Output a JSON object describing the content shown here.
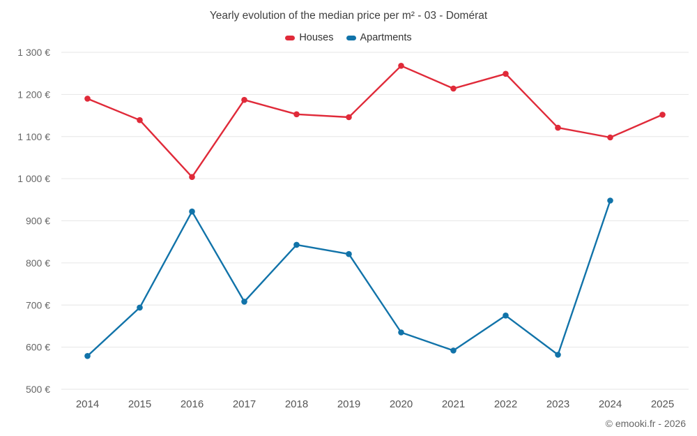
{
  "chart": {
    "footer": "© emooki.fr - 2026"
  },
  "chart_data": {
    "type": "line",
    "title": "Yearly evolution of the median price per m² - 03 - Domérat",
    "categories": [
      "2014",
      "2015",
      "2016",
      "2017",
      "2018",
      "2019",
      "2020",
      "2021",
      "2022",
      "2023",
      "2024",
      "2025"
    ],
    "series": [
      {
        "name": "Houses",
        "color": "#e02a39",
        "values": [
          1190,
          1139,
          1004,
          1187,
          1153,
          1146,
          1268,
          1214,
          1249,
          1121,
          1098,
          1152
        ]
      },
      {
        "name": "Apartments",
        "color": "#1173a9",
        "values": [
          579,
          694,
          922,
          708,
          843,
          821,
          635,
          592,
          675,
          582,
          948,
          null
        ]
      }
    ],
    "ylim": [
      500,
      1300
    ],
    "yticks": [
      {
        "value": 500,
        "label": "500 €"
      },
      {
        "value": 600,
        "label": "600 €"
      },
      {
        "value": 700,
        "label": "700 €"
      },
      {
        "value": 800,
        "label": "800 €"
      },
      {
        "value": 900,
        "label": "900 €"
      },
      {
        "value": 1000,
        "label": "1 000 €"
      },
      {
        "value": 1100,
        "label": "1 100 €"
      },
      {
        "value": 1200,
        "label": "1 200 €"
      },
      {
        "value": 1300,
        "label": "1 300 €"
      }
    ],
    "grid": true,
    "legend_position": "top",
    "xlabel": "",
    "ylabel": ""
  }
}
